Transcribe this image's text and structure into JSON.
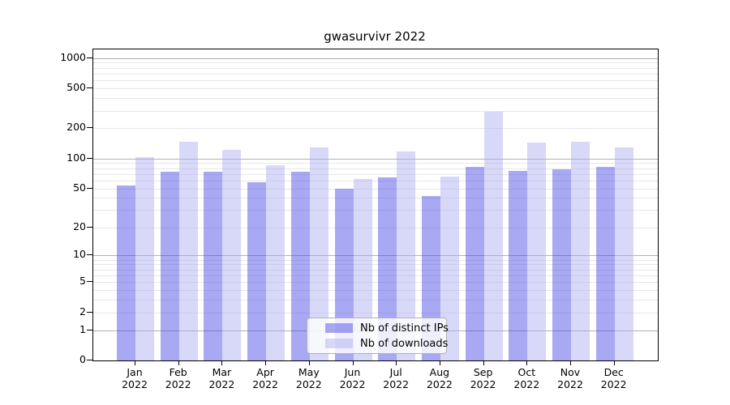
{
  "title": "gwasurvivr 2022",
  "colors": {
    "bar_distinct_ips_fill": "rgba(64,64,229,0.45)",
    "bar_distinct_ips_rendered": "#a9a9f3",
    "bar_downloads_fill": "rgba(169,169,240,0.45)",
    "bar_downloads_rendered": "#dadaf8",
    "grid_major": "#b2b2b2",
    "grid_minor": "#e7e7e7",
    "axis_spine": "#000000",
    "legend_border": "#b0b0b0"
  },
  "chart_data": {
    "type": "bar",
    "title": "gwasurvivr 2022",
    "scale": "log1p",
    "grid": true,
    "legend_position": "lower center (inside axes)",
    "categories": [
      "Jan 2022",
      "Feb 2022",
      "Mar 2022",
      "Apr 2022",
      "May 2022",
      "Jun 2022",
      "Jul 2022",
      "Aug 2022",
      "Sep 2022",
      "Oct 2022",
      "Nov 2022",
      "Dec 2022"
    ],
    "series": [
      {
        "name": "Nb of distinct IPs",
        "color": "rgba(64,64,229,0.45)",
        "values": [
          53,
          73,
          73,
          58,
          73,
          50,
          65,
          42,
          83,
          75,
          78,
          82
        ]
      },
      {
        "name": "Nb of downloads",
        "color": "rgba(169,169,240,0.45)",
        "values": [
          104,
          148,
          123,
          85,
          128,
          62,
          117,
          66,
          290,
          143,
          148,
          130
        ]
      }
    ],
    "yticks": [
      0,
      1,
      2,
      5,
      10,
      20,
      50,
      100,
      200,
      500,
      1000
    ],
    "minor_gridlines": [
      2,
      3,
      4,
      5,
      6,
      7,
      8,
      9,
      20,
      30,
      40,
      50,
      60,
      70,
      80,
      90,
      200,
      300,
      400,
      500,
      600,
      700,
      800,
      900
    ],
    "major_gridlines": [
      1,
      10,
      100,
      1000
    ],
    "xlabel": "",
    "ylabel": "",
    "ylim": [
      0,
      1218
    ]
  }
}
